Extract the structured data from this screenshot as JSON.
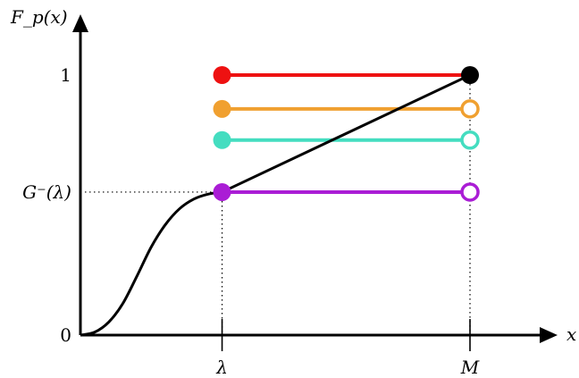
{
  "chart_data": {
    "type": "line",
    "ylabel": "F_p(x)",
    "xlabel": "x",
    "x_ticks": [
      {
        "value": 0,
        "label": ""
      },
      {
        "value": 1,
        "label": "λ"
      },
      {
        "value": 2.75,
        "label": "M"
      }
    ],
    "y_ticks": [
      {
        "value": 0,
        "label": "0"
      },
      {
        "value": 0.55,
        "label": "G⁻(λ)"
      },
      {
        "value": 1,
        "label": "1"
      }
    ],
    "xlim": [
      0,
      3.4
    ],
    "ylim": [
      0,
      1.2
    ],
    "curve": {
      "color": "#000000",
      "points": [
        [
          0,
          0
        ],
        [
          0.1,
          0.011
        ],
        [
          0.2,
          0.05
        ],
        [
          0.3,
          0.122
        ],
        [
          0.4,
          0.228
        ],
        [
          0.5,
          0.339
        ],
        [
          0.6,
          0.425
        ],
        [
          0.7,
          0.486
        ],
        [
          0.8,
          0.523
        ],
        [
          0.9,
          0.542
        ],
        [
          1.0,
          0.55
        ],
        [
          2.75,
          1.0
        ]
      ]
    },
    "series": [
      {
        "y": 1.0,
        "x_start": 1,
        "x_end": 2.75,
        "color": "#ee1111",
        "start": "filled",
        "end": "filled-black"
      },
      {
        "y": 0.87,
        "x_start": 1,
        "x_end": 2.75,
        "color": "#f0a030",
        "start": "filled",
        "end": "open"
      },
      {
        "y": 0.75,
        "x_start": 1,
        "x_end": 2.75,
        "color": "#44ddc0",
        "start": "filled",
        "end": "open"
      },
      {
        "y": 0.55,
        "x_start": 1,
        "x_end": 2.75,
        "color": "#aa1dd5",
        "start": "filled",
        "end": "open"
      }
    ]
  }
}
